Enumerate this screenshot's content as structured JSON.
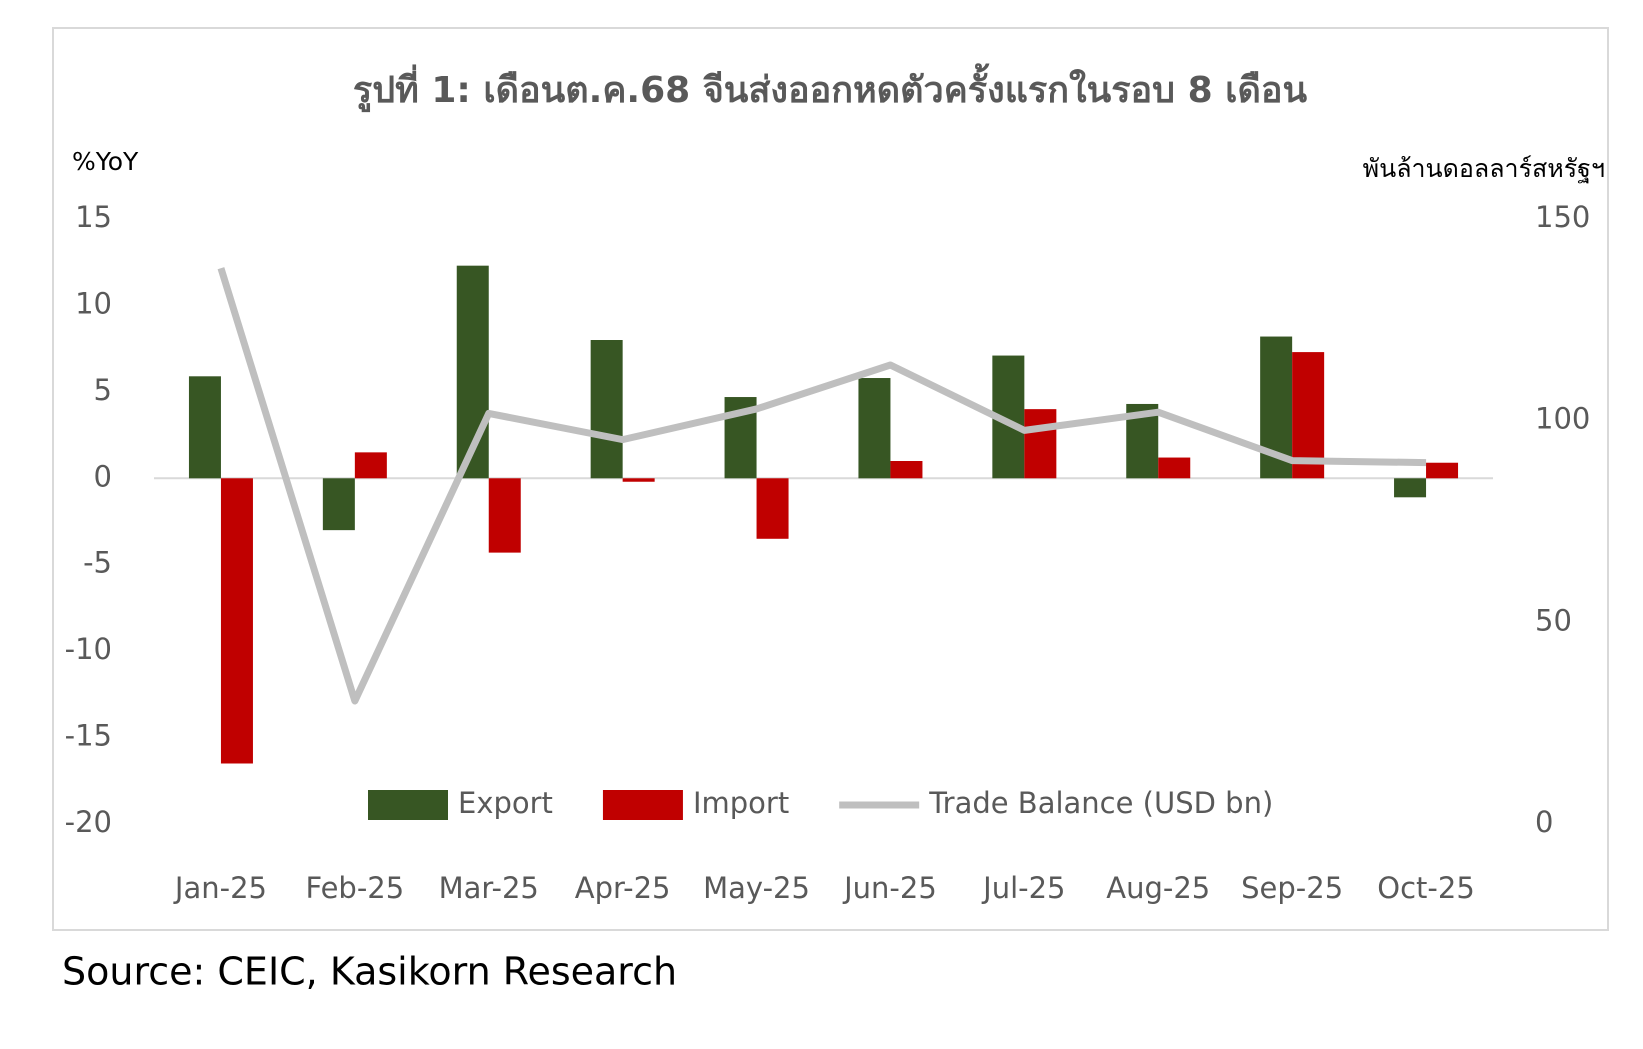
{
  "chart_data": {
    "type": "bar",
    "title": "รูปที่ 1: เดือนต.ค.68 จีนส่งออกหดตัวครั้งแรกในรอบ 8 เดือน",
    "y_label": "%YoY",
    "y2_label": "พันล้านดอลลาร์สหรัฐฯ",
    "source": "Source: CEIC, Kasikorn Research",
    "categories": [
      "Jan-25",
      "Feb-25",
      "Mar-25",
      "Apr-25",
      "May-25",
      "Jun-25",
      "Jul-25",
      "Aug-25",
      "Sep-25",
      "Oct-25"
    ],
    "series": [
      {
        "name": "Export",
        "type": "bar",
        "color": "#375623",
        "values": [
          5.9,
          -3.0,
          12.3,
          8.0,
          4.7,
          5.8,
          7.1,
          4.3,
          8.2,
          -1.1
        ]
      },
      {
        "name": "Import",
        "type": "bar",
        "color": "#c00000",
        "values": [
          -16.5,
          1.5,
          -4.3,
          -0.2,
          -3.5,
          1.0,
          4.0,
          1.2,
          7.3,
          0.9
        ]
      },
      {
        "name": "Trade Balance (USD bn)",
        "type": "line",
        "axis": "y2",
        "color": "#bfbfbf",
        "values": [
          137.8,
          30.5,
          101.8,
          95.3,
          102.9,
          113.8,
          97.6,
          102.1,
          90.1,
          89.6
        ]
      }
    ],
    "ylim": [
      -20,
      15
    ],
    "yticks": [
      -20,
      -15,
      -10,
      -5,
      0,
      5,
      10,
      15
    ],
    "y2lim": [
      0,
      150
    ],
    "y2ticks": [
      0,
      50,
      100,
      150
    ],
    "legend": "bottom",
    "grid": false
  }
}
